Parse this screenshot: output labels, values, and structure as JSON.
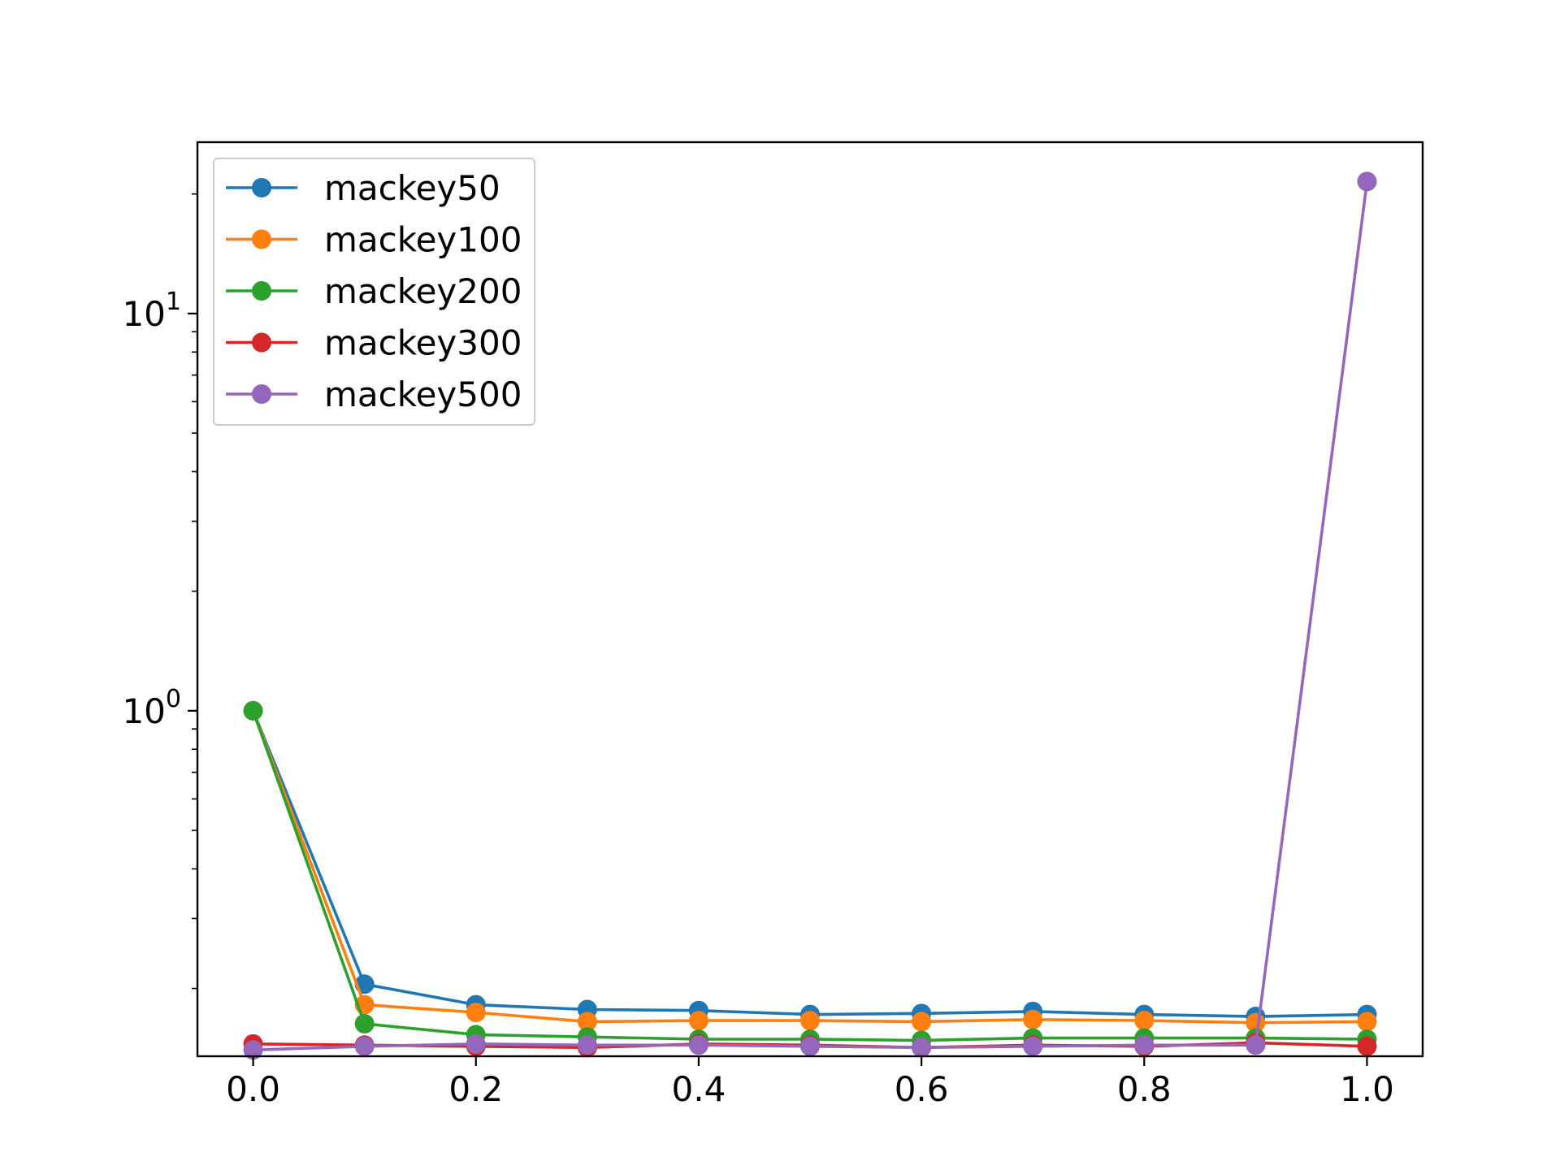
{
  "chart_data": {
    "type": "line",
    "title": "",
    "xlabel": "",
    "ylabel": "",
    "yscale": "log",
    "xlim": [
      -0.05,
      1.05
    ],
    "ylim": [
      0.135,
      27
    ],
    "x": [
      0.0,
      0.1,
      0.2,
      0.3,
      0.4,
      0.5,
      0.6,
      0.7,
      0.8,
      0.9,
      1.0
    ],
    "xticks": [
      "0.0",
      "0.2",
      "0.4",
      "0.6",
      "0.8",
      "1.0"
    ],
    "xtick_values": [
      0.0,
      0.2,
      0.4,
      0.6,
      0.8,
      1.0
    ],
    "yticks": [
      {
        "base": "10",
        "exp": "0",
        "value": 1
      },
      {
        "base": "10",
        "exp": "1",
        "value": 10
      }
    ],
    "grid": false,
    "legend_position": "top-left",
    "series": [
      {
        "name": "mackey50",
        "color": "#1f77b4",
        "values": [
          1.0,
          0.205,
          0.182,
          0.177,
          0.176,
          0.172,
          0.173,
          0.175,
          0.172,
          0.17,
          0.172
        ]
      },
      {
        "name": "mackey100",
        "color": "#ff7f0e",
        "values": [
          1.0,
          0.182,
          0.174,
          0.165,
          0.166,
          0.166,
          0.165,
          0.167,
          0.166,
          0.164,
          0.165
        ]
      },
      {
        "name": "mackey200",
        "color": "#2ca02c",
        "values": [
          1.0,
          0.163,
          0.153,
          0.151,
          0.149,
          0.149,
          0.148,
          0.15,
          0.15,
          0.15,
          0.149
        ]
      },
      {
        "name": "mackey300",
        "color": "#d62728",
        "values": [
          0.145,
          0.144,
          0.143,
          0.142,
          0.145,
          0.144,
          0.142,
          0.144,
          0.143,
          0.146,
          0.143
        ]
      },
      {
        "name": "mackey500",
        "color": "#9467bd",
        "values": [
          0.14,
          0.143,
          0.145,
          0.144,
          0.144,
          0.143,
          0.142,
          0.143,
          0.144,
          0.144,
          21.5
        ]
      }
    ]
  }
}
